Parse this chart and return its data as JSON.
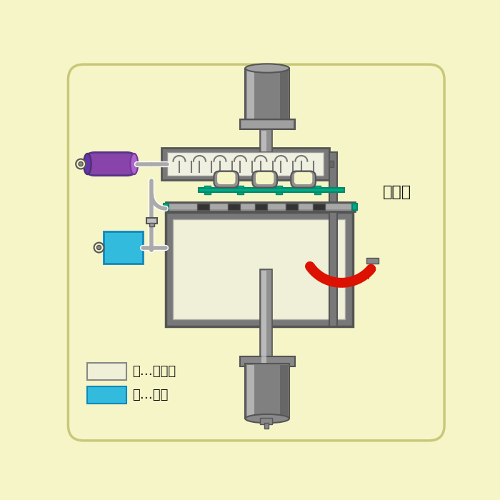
{
  "bg_color": "#f5f5c8",
  "border_color": "#c8c878",
  "gray_dark": "#555555",
  "gray_mid": "#888888",
  "gray_steel": "#909090",
  "gray_frame": "#787878",
  "gray_light": "#b8b8b8",
  "green_teal": "#00aa88",
  "purple_tank": "#8844aa",
  "blue_box": "#33bbdd",
  "white_inner": "#f0f0e0",
  "arrow_red": "#dd1100",
  "text_color": "#111111",
  "legend_cream": "#f0f0d8",
  "label_toridasahi": "取出し",
  "label_yellow": "黄…大気圧",
  "label_blue": "青…真空",
  "pipe_white": "#ffffff",
  "pipe_color": "#aaaaaa"
}
